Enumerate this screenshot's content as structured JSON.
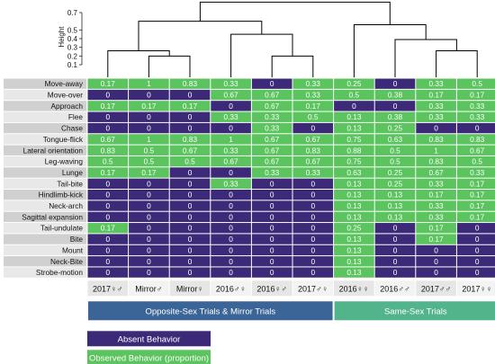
{
  "chart_data": {
    "type": "heatmap",
    "title": "",
    "dendrogram": {
      "ylabel": "Height",
      "yticks": [
        "0.1",
        "0.2",
        "0.3",
        "0.4",
        "0.5",
        "0.7"
      ]
    },
    "columns": [
      "2017♀♂",
      "Mirror♂",
      "Mirror♀",
      "2016♂♀",
      "2016♀♂",
      "2017♂♀",
      "2016♀♀",
      "2016♂♂",
      "2017♂♂",
      "2017♀♀"
    ],
    "rows": [
      "Move-away",
      "Move-over",
      "Approach",
      "Flee",
      "Chase",
      "Tongue-flick",
      "Lateral orientation",
      "Leg-waving",
      "Lunge",
      "Tail-bite",
      "Hindlimb-kick",
      "Neck-arch",
      "Sagittal expansion",
      "Tail-undulate",
      "Bite",
      "Mount",
      "Neck-Bite",
      "Strobe-motion"
    ],
    "values": [
      [
        "0.17",
        "1",
        "0.83",
        "0.33",
        "0",
        "0.33",
        "0.25",
        "0",
        "0.33",
        "0.5"
      ],
      [
        "0",
        "0",
        "0",
        "0.67",
        "0.67",
        "0.33",
        "0.5",
        "0.38",
        "0.17",
        "0.17"
      ],
      [
        "0.17",
        "0.17",
        "0.17",
        "0",
        "0.67",
        "0.17",
        "0",
        "0",
        "0.33",
        "0.33"
      ],
      [
        "0",
        "0",
        "0",
        "0.33",
        "0.33",
        "0.5",
        "0.13",
        "0.38",
        "0.33",
        "0.33"
      ],
      [
        "0",
        "0",
        "0",
        "0",
        "0.33",
        "0",
        "0.13",
        "0.25",
        "0",
        "0"
      ],
      [
        "0.67",
        "1",
        "0.83",
        "1",
        "0.67",
        "0.67",
        "0.75",
        "0.63",
        "0.83",
        "0.83"
      ],
      [
        "0.83",
        "0.5",
        "0.67",
        "0.33",
        "0.67",
        "0.83",
        "0.88",
        "0.5",
        "1",
        "0.67"
      ],
      [
        "0.5",
        "0.5",
        "0.5",
        "0.67",
        "0.67",
        "0.67",
        "0.75",
        "0.5",
        "0.83",
        "0.5"
      ],
      [
        "0.17",
        "0.17",
        "0",
        "0",
        "0.33",
        "0.33",
        "0.63",
        "0.25",
        "0.67",
        "0.33"
      ],
      [
        "0",
        "0",
        "0",
        "0.33",
        "0",
        "0",
        "0.13",
        "0.25",
        "0.33",
        "0.17"
      ],
      [
        "0",
        "0",
        "0",
        "0",
        "0",
        "0",
        "0.13",
        "0.13",
        "0.17",
        "0.17"
      ],
      [
        "0",
        "0",
        "0",
        "0",
        "0",
        "0",
        "0.13",
        "0.13",
        "0.33",
        "0.17"
      ],
      [
        "0",
        "0",
        "0",
        "0",
        "0",
        "0",
        "0.13",
        "0.13",
        "0.33",
        "0.17"
      ],
      [
        "0.17",
        "0",
        "0",
        "0",
        "0",
        "0",
        "0.25",
        "0",
        "0.17",
        "0"
      ],
      [
        "0",
        "0",
        "0",
        "0",
        "0",
        "0",
        "0.13",
        "0",
        "0.17",
        "0"
      ],
      [
        "0",
        "0",
        "0",
        "0",
        "0",
        "0",
        "0.13",
        "0",
        "0",
        "0"
      ],
      [
        "0",
        "0",
        "0",
        "0",
        "0",
        "0",
        "0.13",
        "0",
        "0",
        "0"
      ],
      [
        "0",
        "0",
        "0",
        "0",
        "0",
        "0",
        "0.13",
        "0",
        "0",
        "0"
      ]
    ],
    "groups": [
      {
        "label": "Opposite-Sex Trials & Mirror Trials",
        "columns": [
          "2017♀♂",
          "Mirror♂",
          "Mirror♀",
          "2016♂♀",
          "2016♀♂",
          "2017♂♀"
        ],
        "color": "#3a6596"
      },
      {
        "label": "Same-Sex Trials",
        "columns": [
          "2016♀♀",
          "2016♂♂",
          "2017♂♂",
          "2017♀♀"
        ],
        "color": "#52b48a"
      }
    ],
    "legend": [
      {
        "label": "Absent Behavior",
        "color": "#3c2a78"
      },
      {
        "label": "Observed Behavior (proportion)",
        "color": "#5bc45e"
      }
    ],
    "colors": {
      "absent": "#3c2a78",
      "observed": "#5bc45e",
      "row_label_even": "#d0d0d0",
      "row_label_odd": "#e8e8e8",
      "col_label_even": "#e6e6e6",
      "col_label_odd": "#f3f3f3"
    }
  }
}
